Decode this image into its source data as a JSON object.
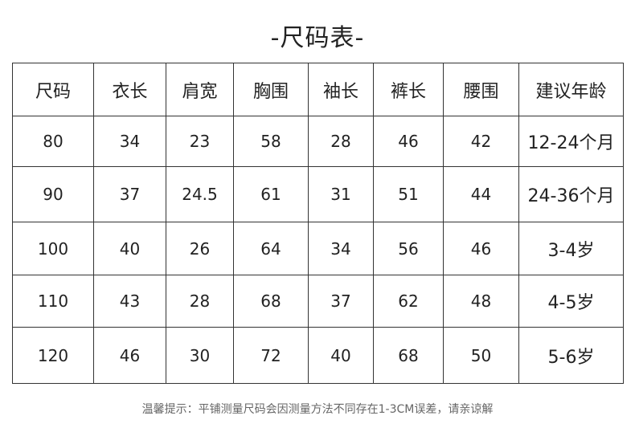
{
  "title": "-尺码表-",
  "table": {
    "headers": [
      "尺码",
      "衣长",
      "肩宽",
      "胸围",
      "袖长",
      "裤长",
      "腰围",
      "建议年龄"
    ],
    "rows": [
      [
        "80",
        "34",
        "23",
        "58",
        "28",
        "46",
        "42",
        "12-24个月"
      ],
      [
        "90",
        "37",
        "24.5",
        "61",
        "31",
        "51",
        "44",
        "24-36个月"
      ],
      [
        "100",
        "40",
        "26",
        "64",
        "34",
        "56",
        "46",
        "3-4岁"
      ],
      [
        "110",
        "43",
        "28",
        "68",
        "37",
        "62",
        "48",
        "4-5岁"
      ],
      [
        "120",
        "46",
        "30",
        "72",
        "40",
        "68",
        "50",
        "5-6岁"
      ]
    ]
  },
  "footer": "温馨提示：平铺测量尺码会因测量方法不同存在1-3CM误差，请亲谅解"
}
